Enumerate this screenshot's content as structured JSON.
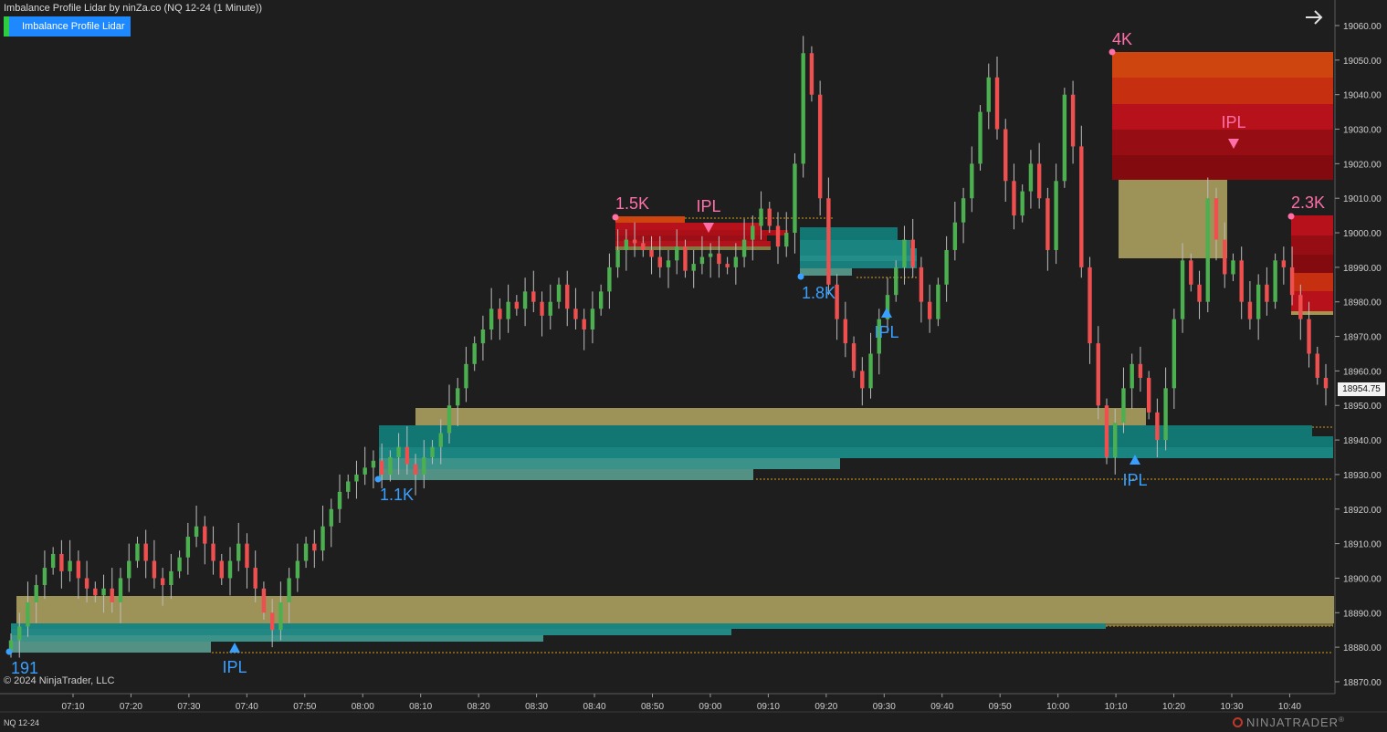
{
  "header": {
    "title": "Imbalance Profile Lidar by ninZa.co (NQ 12-24 (1 Minute))",
    "indicator_button": "Imbalance Profile Lidar",
    "arrow_icon": "arrow-right-icon"
  },
  "footer": {
    "copyright": "© 2024 NinjaTrader, LLC",
    "instrument": "NQ 12-24",
    "logo_text": "NINJATRADER",
    "logo_mark": "®"
  },
  "price_axis": {
    "labels": [
      "19060.00",
      "19050.00",
      "19040.00",
      "19030.00",
      "19020.00",
      "19010.00",
      "19000.00",
      "18990.00",
      "18980.00",
      "18970.00",
      "18960.00",
      "18950.00",
      "18940.00",
      "18930.00",
      "18920.00",
      "18910.00",
      "18900.00",
      "18890.00",
      "18880.00",
      "18870.00"
    ],
    "current_price": "18954.75"
  },
  "time_axis": {
    "labels": [
      "07:10",
      "07:20",
      "07:30",
      "07:40",
      "07:50",
      "08:00",
      "08:10",
      "08:20",
      "08:30",
      "08:40",
      "08:50",
      "09:00",
      "09:10",
      "09:20",
      "09:30",
      "09:40",
      "09:50",
      "10:00",
      "10:10",
      "10:20",
      "10:30",
      "10:40"
    ]
  },
  "annotations": [
    {
      "text": "191",
      "color": "#3aa0ff"
    },
    {
      "text": "IPL",
      "color": "#3aa0ff"
    },
    {
      "text": "1.1K",
      "color": "#3aa0ff"
    },
    {
      "text": "1.5K",
      "color": "#ff6fa8"
    },
    {
      "text": "IPL",
      "color": "#ff6fa8"
    },
    {
      "text": "1.8K",
      "color": "#3aa0ff"
    },
    {
      "text": "IPL",
      "color": "#3aa0ff"
    },
    {
      "text": "4K",
      "color": "#ff6fa8"
    },
    {
      "text": "IPL",
      "color": "#ff6fa8"
    },
    {
      "text": "2.3K",
      "color": "#ff6fa8"
    },
    {
      "text": "IPL",
      "color": "#3aa0ff"
    }
  ],
  "colors": {
    "background": "#1e1e1e",
    "up_candle": "#4caf50",
    "down_candle": "#ef4f4f",
    "khaki_zone": "#a49a5c",
    "teal_zone": "#1a8a86",
    "red_zone": "#c0121b",
    "orange_zone": "#d9480f",
    "accent_blue": "#1e88ff",
    "accent_pink": "#ff6fa8"
  },
  "chart_data": {
    "type": "candlestick",
    "ylim": [
      18866,
      19066
    ],
    "ylabel": "",
    "xlabel": "",
    "grid": false,
    "series": [
      {
        "values": [
          18882,
          18886,
          18893,
          18898,
          18903,
          18907,
          18902,
          18905,
          18900,
          18897,
          18895,
          18897,
          18893,
          18900,
          18905,
          18910,
          18905,
          18900,
          18898,
          18902,
          18906,
          18912,
          18915,
          18910,
          18905,
          18900,
          18905,
          18910,
          18903,
          18897,
          18890,
          18885,
          18893,
          18900,
          18905,
          18910,
          18908,
          18915,
          18920,
          18925,
          18928,
          18930,
          18932,
          18934,
          18930,
          18935,
          18938,
          18933,
          18930,
          18935,
          18938,
          18942,
          18950,
          18955,
          18962,
          18968,
          18972,
          18978,
          18975,
          18980,
          18978,
          18983,
          18980,
          18976,
          18980,
          18985,
          18978,
          18975,
          18972,
          18978,
          18983,
          18990,
          18995,
          18998,
          18997,
          18995,
          18993,
          18990,
          18992,
          18996,
          18989,
          18991,
          18993,
          18994,
          18991,
          18990,
          18993,
          18998,
          19002,
          19007,
          19002,
          18996,
          19000,
          19020,
          19052,
          19040,
          19010,
          18985,
          18975,
          18968,
          18960,
          18955,
          18965,
          18975,
          18982,
          18990,
          18998,
          18990,
          18980,
          18975,
          18985,
          18995,
          19003,
          19010,
          19020,
          19035,
          19045,
          19030,
          19015,
          19005,
          19012,
          19020,
          19010,
          18995,
          19015,
          19040,
          19025,
          18990,
          18968,
          18950,
          18935,
          18945,
          18955,
          18962,
          18958,
          18948,
          18940,
          18955,
          18975,
          18992,
          18985,
          18980,
          19010,
          18998,
          18988,
          18992,
          18980,
          18975,
          18985,
          18980,
          18992,
          18990,
          18982,
          18975,
          18965,
          18958,
          18955
        ]
      }
    ]
  }
}
